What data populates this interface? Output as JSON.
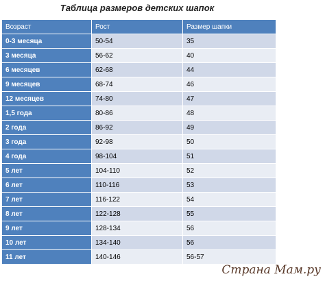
{
  "title": "Таблица размеров детских шапок",
  "table": {
    "header": [
      "Возраст",
      "Рост",
      "Размер шапки"
    ],
    "rows": [
      [
        "0-3 месяца",
        "50-54",
        "35"
      ],
      [
        "3 месяца",
        "56-62",
        "40"
      ],
      [
        "6 месяцев",
        "62-68",
        "44"
      ],
      [
        "9 месяцев",
        "68-74",
        "46"
      ],
      [
        "12 месяцев",
        "74-80",
        "47"
      ],
      [
        "1,5 года",
        "80-86",
        "48"
      ],
      [
        "2 года",
        "86-92",
        "49"
      ],
      [
        "3 года",
        "92-98",
        "50"
      ],
      [
        "4 года",
        "98-104",
        "51"
      ],
      [
        "5 лет",
        "104-110",
        "52"
      ],
      [
        "6 лет",
        "110-116",
        "53"
      ],
      [
        "7 лет",
        "116-122",
        "54"
      ],
      [
        "8 лет",
        "122-128",
        "55"
      ],
      [
        "9 лет",
        "128-134",
        "56"
      ],
      [
        "10 лет",
        "134-140",
        "56"
      ],
      [
        "11 лет",
        "140-146",
        "56-57"
      ]
    ]
  },
  "watermark": "Страна Мам.ру"
}
